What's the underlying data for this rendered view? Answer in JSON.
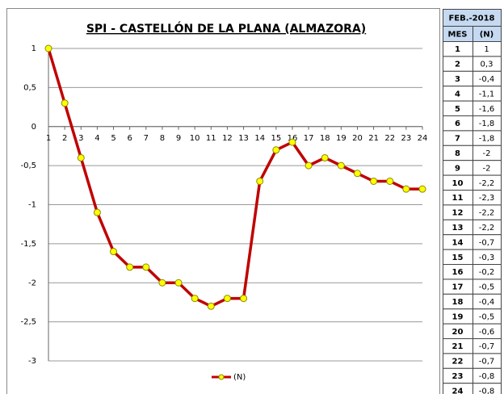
{
  "chart_data": {
    "type": "line",
    "title": "SPI - CASTELLÓN DE LA PLANA (ALMAZORA)",
    "categories": [
      "1",
      "2",
      "3",
      "4",
      "5",
      "6",
      "7",
      "8",
      "9",
      "10",
      "11",
      "12",
      "13",
      "14",
      "15",
      "16",
      "17",
      "18",
      "19",
      "20",
      "21",
      "22",
      "23",
      "24"
    ],
    "series": [
      {
        "name": "(N)",
        "color": "#c00000",
        "marker_color": "#ffff00",
        "values": [
          1,
          0.3,
          -0.4,
          -1.1,
          -1.6,
          -1.8,
          -1.8,
          -2,
          -2,
          -2.2,
          -2.3,
          -2.2,
          -2.2,
          -0.7,
          -0.3,
          -0.2,
          -0.5,
          -0.4,
          -0.5,
          -0.6,
          -0.7,
          -0.7,
          -0.8,
          -0.8
        ]
      }
    ],
    "ylim": [
      -3,
      1
    ],
    "yticks": [
      1,
      {
        "value": 0.5,
        "label": "0,5"
      },
      0,
      {
        "value": -0.5,
        "label": "-0,5"
      },
      -1,
      {
        "value": -1.5,
        "label": "-1,5"
      },
      -2,
      {
        "value": -2.5,
        "label": "-2,5"
      },
      -3
    ],
    "grid": true,
    "legend": "bottom"
  },
  "table": {
    "header": "FEB.-2018",
    "columns": [
      "MES",
      "(N)"
    ],
    "rows": [
      [
        "1",
        "1"
      ],
      [
        "2",
        "0,3"
      ],
      [
        "3",
        "-0,4"
      ],
      [
        "4",
        "-1,1"
      ],
      [
        "5",
        "-1,6"
      ],
      [
        "6",
        "-1,8"
      ],
      [
        "7",
        "-1,8"
      ],
      [
        "8",
        "-2"
      ],
      [
        "9",
        "-2"
      ],
      [
        "10",
        "-2,2"
      ],
      [
        "11",
        "-2,3"
      ],
      [
        "12",
        "-2,2"
      ],
      [
        "13",
        "-2,2"
      ],
      [
        "14",
        "-0,7"
      ],
      [
        "15",
        "-0,3"
      ],
      [
        "16",
        "-0,2"
      ],
      [
        "17",
        "-0,5"
      ],
      [
        "18",
        "-0,4"
      ],
      [
        "19",
        "-0,5"
      ],
      [
        "20",
        "-0,6"
      ],
      [
        "21",
        "-0,7"
      ],
      [
        "22",
        "-0,7"
      ],
      [
        "23",
        "-0,8"
      ],
      [
        "24",
        "-0,8"
      ]
    ]
  }
}
